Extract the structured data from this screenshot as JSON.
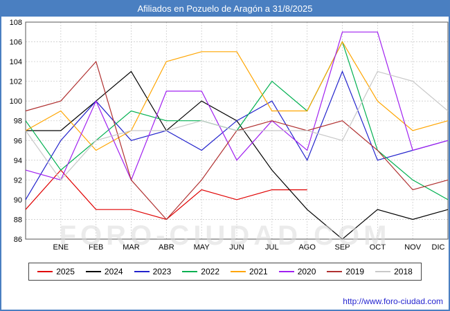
{
  "title": "Afiliados en Pozuelo de Aragón a 31/8/2025",
  "watermark": "FORO-CIUDAD.COM",
  "footer": {
    "url": "http://www.foro-ciudad.com"
  },
  "chart_data": {
    "type": "line",
    "categories": [
      "ENE",
      "FEB",
      "MAR",
      "ABR",
      "MAY",
      "JUN",
      "JUL",
      "AGO",
      "SEP",
      "OCT",
      "NOV",
      "DIC"
    ],
    "ylim": [
      86,
      108
    ],
    "ytick_step": 2,
    "grid": true,
    "legend_position": "bottom",
    "series": [
      {
        "name": "2025",
        "color": "#e00000",
        "pre": 89,
        "values": [
          93,
          89,
          89,
          88,
          91,
          90,
          91,
          91,
          null,
          null,
          null,
          null
        ]
      },
      {
        "name": "2024",
        "color": "#000000",
        "pre": 97,
        "values": [
          97,
          100,
          103,
          97,
          100,
          98,
          93,
          89,
          86,
          89,
          88,
          89
        ]
      },
      {
        "name": "2023",
        "color": "#2222cc",
        "pre": 90,
        "values": [
          96,
          100,
          96,
          97,
          95,
          98,
          100,
          94,
          103,
          94,
          95,
          96
        ]
      },
      {
        "name": "2022",
        "color": "#00b050",
        "pre": 98,
        "values": [
          93,
          96,
          99,
          98,
          98,
          97,
          102,
          99,
          106,
          95,
          92,
          90
        ]
      },
      {
        "name": "2021",
        "color": "#ffa500",
        "pre": 97,
        "values": [
          99,
          95,
          97,
          104,
          105,
          105,
          99,
          99,
          106,
          100,
          97,
          98
        ]
      },
      {
        "name": "2020",
        "color": "#a020f0",
        "pre": 93,
        "values": [
          92,
          100,
          92,
          101,
          101,
          94,
          98,
          95,
          107,
          107,
          95,
          96
        ]
      },
      {
        "name": "2019",
        "color": "#b03030",
        "pre": 99,
        "values": [
          100,
          104,
          92,
          88,
          92,
          97,
          98,
          97,
          98,
          95,
          91,
          92
        ]
      },
      {
        "name": "2018",
        "color": "#c8c8c8",
        "pre": 97,
        "values": [
          92,
          96,
          97,
          97,
          98,
          97,
          97,
          97,
          96,
          103,
          102,
          99
        ]
      }
    ]
  }
}
